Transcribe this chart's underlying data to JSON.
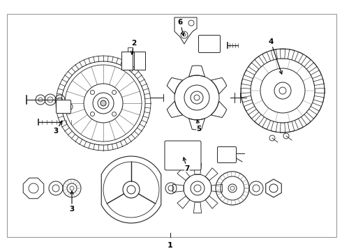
{
  "background_color": "#ffffff",
  "line_color": "#222222",
  "label_color": "#000000",
  "fig_width": 4.9,
  "fig_height": 3.6,
  "dpi": 100,
  "border": [
    10,
    20,
    472,
    320
  ]
}
